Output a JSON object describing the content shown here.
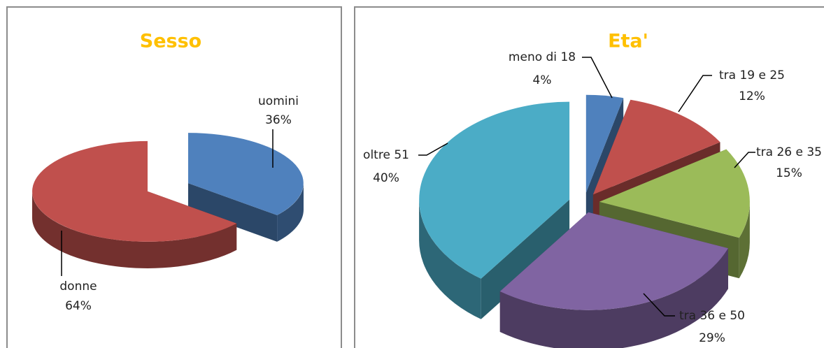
{
  "chart_data": [
    {
      "type": "pie",
      "title": "Sesso",
      "categories": [
        "uomini",
        "donne"
      ],
      "values": [
        36,
        64
      ],
      "value_labels": [
        "36%",
        "64%"
      ],
      "colors": [
        "#4f81bd",
        "#c0504d"
      ]
    },
    {
      "type": "pie",
      "title": "Eta'",
      "categories": [
        "meno di 18",
        "tra 19 e 25",
        "tra 26 e 35",
        "tra 36 e 50",
        "oltre 51"
      ],
      "values": [
        4,
        12,
        15,
        29,
        40
      ],
      "value_labels": [
        "4%",
        "12%",
        "15%",
        "29%",
        "40%"
      ],
      "colors": [
        "#4f81bd",
        "#c0504d",
        "#9bbb59",
        "#8064a2",
        "#4bacc6"
      ]
    }
  ]
}
